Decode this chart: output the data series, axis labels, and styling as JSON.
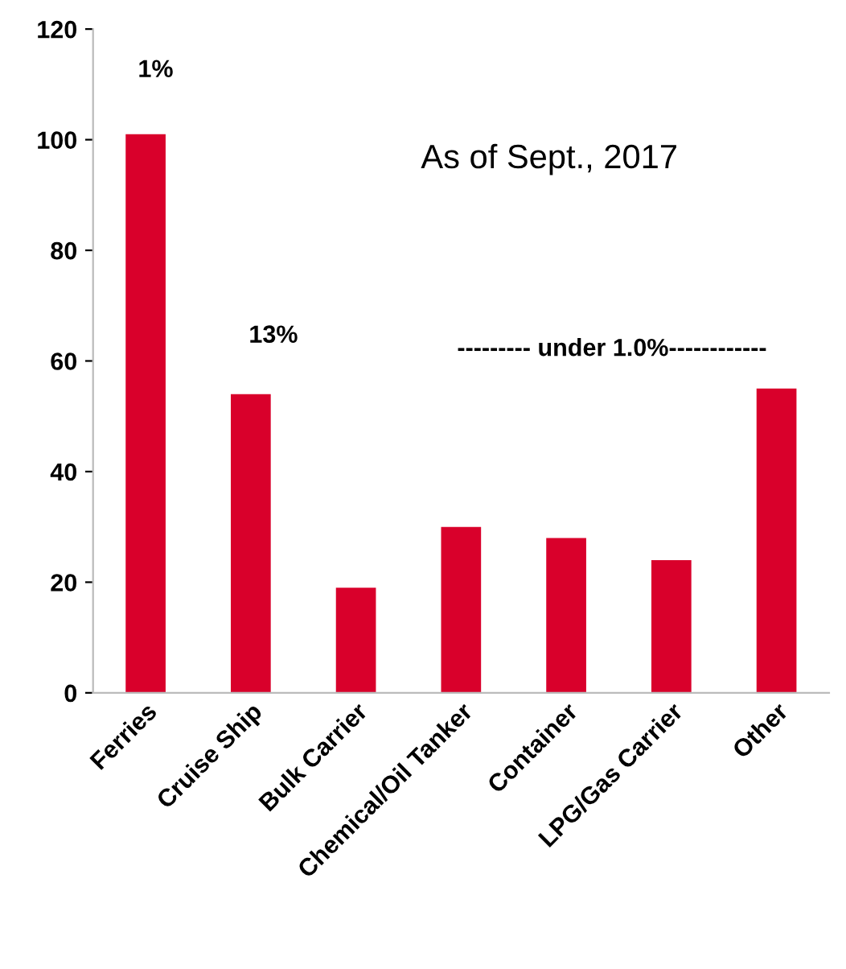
{
  "chart_data": {
    "type": "bar",
    "categories": [
      "Ferries",
      "Cruise Ship",
      "Bulk Carrier",
      "Chemical/Oil Tanker",
      "Container",
      "LPG/Gas Carrier",
      "Other"
    ],
    "values": [
      101,
      54,
      19,
      30,
      28,
      24,
      55
    ],
    "color": "#d9002b",
    "ylim": [
      0,
      120
    ],
    "yticks": [
      0,
      20,
      40,
      60,
      80,
      100,
      120
    ],
    "grid": false,
    "legend": false,
    "annotations": [
      "1%",
      "13%",
      "--------- under 1.0%------------",
      "As of Sept., 2017"
    ]
  }
}
